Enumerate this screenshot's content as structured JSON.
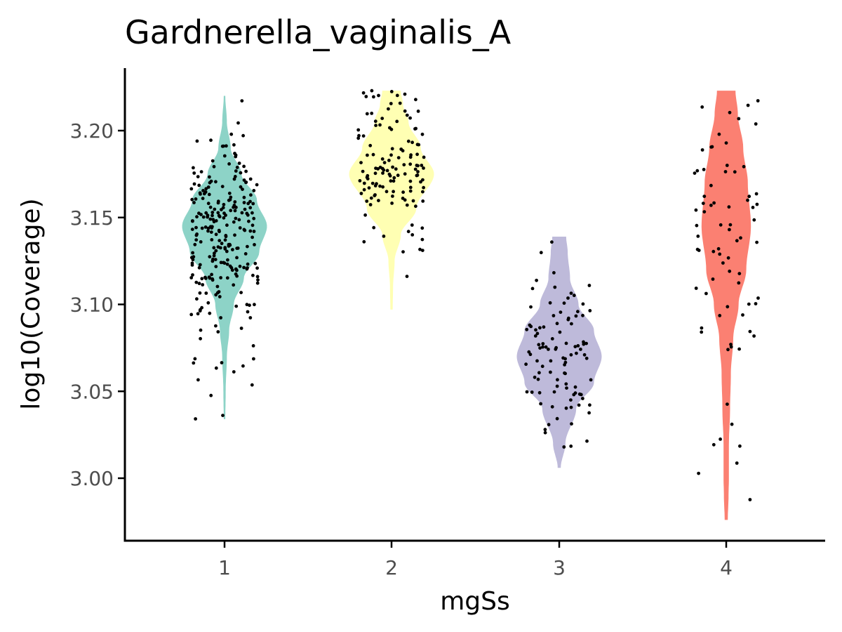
{
  "chart_data": {
    "type": "violin",
    "title": "Gardnerella_vaginalis_A",
    "xlabel": "mgSs",
    "ylabel": "log10(Coverage)",
    "categories": [
      "1",
      "2",
      "3",
      "4"
    ],
    "y_ticks": [
      3.0,
      3.05,
      3.1,
      3.15,
      3.2
    ],
    "y_tick_labels": [
      "3.00",
      "3.05",
      "3.10",
      "3.15",
      "3.20"
    ],
    "ylim": [
      2.965,
      3.235
    ],
    "grid": false,
    "legend": "none",
    "series": [
      {
        "category": "1",
        "color": "#8DD3C7",
        "range": [
          3.034,
          3.22
        ],
        "profile": [
          [
            3.034,
            0.01
          ],
          [
            3.05,
            0.015
          ],
          [
            3.07,
            0.03
          ],
          [
            3.085,
            0.06
          ],
          [
            3.1,
            0.12
          ],
          [
            3.115,
            0.25
          ],
          [
            3.13,
            0.45
          ],
          [
            3.145,
            0.55
          ],
          [
            3.16,
            0.42
          ],
          [
            3.175,
            0.22
          ],
          [
            3.19,
            0.08
          ],
          [
            3.205,
            0.03
          ],
          [
            3.22,
            0.01
          ]
        ]
      },
      {
        "category": "2",
        "color": "#FFFFB3",
        "range": [
          3.097,
          3.223
        ],
        "profile": [
          [
            3.097,
            0.015
          ],
          [
            3.11,
            0.02
          ],
          [
            3.125,
            0.04
          ],
          [
            3.14,
            0.12
          ],
          [
            3.155,
            0.32
          ],
          [
            3.175,
            0.55
          ],
          [
            3.19,
            0.38
          ],
          [
            3.205,
            0.22
          ],
          [
            3.215,
            0.15
          ],
          [
            3.223,
            0.12
          ]
        ]
      },
      {
        "category": "3",
        "color": "#BEBADA",
        "range": [
          3.006,
          3.139
        ],
        "profile": [
          [
            3.006,
            0.02
          ],
          [
            3.02,
            0.08
          ],
          [
            3.04,
            0.22
          ],
          [
            3.055,
            0.45
          ],
          [
            3.07,
            0.55
          ],
          [
            3.085,
            0.45
          ],
          [
            3.1,
            0.25
          ],
          [
            3.115,
            0.14
          ],
          [
            3.13,
            0.11
          ],
          [
            3.139,
            0.09
          ]
        ]
      },
      {
        "category": "4",
        "color": "#FB8072",
        "range": [
          2.976,
          3.223
        ],
        "profile": [
          [
            2.976,
            0.02
          ],
          [
            2.99,
            0.03
          ],
          [
            3.0,
            0.035
          ],
          [
            3.02,
            0.035
          ],
          [
            3.04,
            0.05
          ],
          [
            3.06,
            0.06
          ],
          [
            3.08,
            0.09
          ],
          [
            3.1,
            0.16
          ],
          [
            3.12,
            0.26
          ],
          [
            3.145,
            0.32
          ],
          [
            3.17,
            0.28
          ],
          [
            3.19,
            0.22
          ],
          [
            3.21,
            0.15
          ],
          [
            3.223,
            0.12
          ]
        ]
      }
    ],
    "points_per_group": [
      260,
      130,
      100,
      75
    ],
    "point_color": "#000000"
  }
}
